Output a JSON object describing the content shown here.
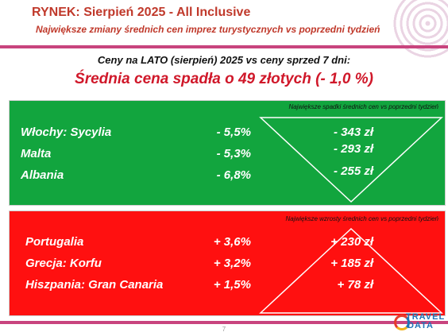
{
  "header": {
    "title": "RYNEK: Sierpień 2025 - All Inclusive",
    "subtitle": "Największe zmiany średnich cen imprez turystycznych vs poprzedni tydzień"
  },
  "intro": "Ceny na LATO (sierpień) 2025 vs ceny sprzed 7 dni:",
  "average": "Średnia cena spadła o 49 złotych (- 1,0 %)",
  "decreases": {
    "note": "Największe spadki średnich cen vs poprzedni tydzień",
    "rows": [
      {
        "name": "Włochy: Sycylia",
        "pct": "-  5,5%",
        "amount": "- 343 zł"
      },
      {
        "name": "Malta",
        "pct": "-  5,3%",
        "amount": "- 293 zł"
      },
      {
        "name": "Albania",
        "pct": "-  6,8%",
        "amount": "- 255 zł"
      }
    ]
  },
  "increases": {
    "note": "Największe wzrosty średnich cen vs poprzedni tydzień",
    "rows": [
      {
        "name": "Portugalia",
        "pct": "+ 3,6%",
        "amount": "+ 230 zł"
      },
      {
        "name": "Grecja: Korfu",
        "pct": "+ 3,2%",
        "amount": "+ 185 zł"
      },
      {
        "name": "Hiszpania: Gran Canaria",
        "pct": "+ 1,5%",
        "amount": "+ 78 zł"
      }
    ]
  },
  "footer": {
    "page_number": "7",
    "logo_line1": "TRAVEL",
    "logo_line2": "DATA"
  },
  "colors": {
    "title_red": "#c0392b",
    "accent_line": "#c8447e",
    "green_panel": "#12a53e",
    "red_panel": "#ff1010"
  }
}
